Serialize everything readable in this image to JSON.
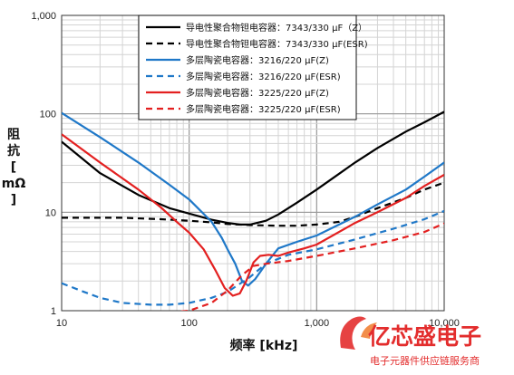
{
  "chart_data": {
    "type": "line",
    "x_scale": "log",
    "y_scale": "log",
    "xlim": [
      10,
      10000
    ],
    "ylim": [
      1,
      1000
    ],
    "grid": true,
    "legend_position": "top-right",
    "xlabel": "频率 [kHz]",
    "ylabel_chars": [
      "阻",
      "抗",
      "[",
      "mΩ",
      "]"
    ],
    "x_ticks": [
      {
        "value": 10,
        "label": "10"
      },
      {
        "value": 100,
        "label": "100"
      },
      {
        "value": 1000,
        "label": "1,000"
      },
      {
        "value": 10000,
        "label": "10,000"
      }
    ],
    "y_ticks": [
      {
        "value": 1,
        "label": "1"
      },
      {
        "value": 10,
        "label": "10"
      },
      {
        "value": 100,
        "label": "100"
      },
      {
        "value": 1000,
        "label": "1,000"
      }
    ],
    "series": [
      {
        "name": "导电性聚合物钽电容器：7343/330 µF（Z）",
        "color": "#000000",
        "dash": "solid",
        "points": [
          [
            10,
            52
          ],
          [
            20,
            25
          ],
          [
            40,
            15
          ],
          [
            70,
            11
          ],
          [
            100,
            9.7
          ],
          [
            150,
            8.4
          ],
          [
            200,
            7.8
          ],
          [
            250,
            7.5
          ],
          [
            300,
            7.5
          ],
          [
            400,
            8.2
          ],
          [
            500,
            9.5
          ],
          [
            700,
            12.5
          ],
          [
            1000,
            17
          ],
          [
            2000,
            32
          ],
          [
            3000,
            45
          ],
          [
            5000,
            66
          ],
          [
            7000,
            82
          ],
          [
            10000,
            105
          ]
        ]
      },
      {
        "name": "导电性聚合物钽电容器：7343/330 µF(ESR)",
        "color": "#000000",
        "dash": "dashed",
        "points": [
          [
            10,
            8.8
          ],
          [
            30,
            8.8
          ],
          [
            60,
            8.5
          ],
          [
            100,
            8.2
          ],
          [
            150,
            7.9
          ],
          [
            200,
            7.6
          ],
          [
            300,
            7.4
          ],
          [
            500,
            7.3
          ],
          [
            700,
            7.3
          ],
          [
            1000,
            7.5
          ],
          [
            1500,
            8
          ],
          [
            2000,
            9
          ],
          [
            3000,
            11
          ],
          [
            5000,
            14
          ],
          [
            7000,
            17
          ],
          [
            10000,
            20
          ]
        ]
      },
      {
        "name": "多层陶瓷电容器：3216/220 µF(Z)",
        "color": "#1f78c8",
        "dash": "solid",
        "points": [
          [
            10,
            102
          ],
          [
            20,
            58
          ],
          [
            40,
            32
          ],
          [
            70,
            19
          ],
          [
            100,
            13.5
          ],
          [
            150,
            8
          ],
          [
            180,
            5.5
          ],
          [
            200,
            4.2
          ],
          [
            230,
            3
          ],
          [
            260,
            2
          ],
          [
            290,
            1.8
          ],
          [
            330,
            2.1
          ],
          [
            400,
            3
          ],
          [
            500,
            4.3
          ],
          [
            700,
            5
          ],
          [
            1000,
            5.8
          ],
          [
            2000,
            9
          ],
          [
            3000,
            12
          ],
          [
            5000,
            17
          ],
          [
            7000,
            23
          ],
          [
            10000,
            32
          ]
        ]
      },
      {
        "name": "多层陶瓷电容器：3216/220 µF(ESR)",
        "color": "#1f78c8",
        "dash": "dashed",
        "points": [
          [
            10,
            1.9
          ],
          [
            15,
            1.55
          ],
          [
            20,
            1.35
          ],
          [
            30,
            1.2
          ],
          [
            50,
            1.15
          ],
          [
            70,
            1.15
          ],
          [
            100,
            1.2
          ],
          [
            150,
            1.35
          ],
          [
            200,
            1.55
          ],
          [
            300,
            2.2
          ],
          [
            400,
            3
          ],
          [
            600,
            3.7
          ],
          [
            1000,
            4.2
          ],
          [
            2000,
            5.3
          ],
          [
            4000,
            6.8
          ],
          [
            7000,
            8.5
          ],
          [
            10000,
            10.3
          ]
        ]
      },
      {
        "name": "多层陶瓷电容器：3225/220 µF(Z)",
        "color": "#e32020",
        "dash": "solid",
        "points": [
          [
            10,
            62
          ],
          [
            20,
            32
          ],
          [
            40,
            17
          ],
          [
            60,
            11.2
          ],
          [
            80,
            8
          ],
          [
            100,
            6.2
          ],
          [
            130,
            4.2
          ],
          [
            160,
            2.6
          ],
          [
            190,
            1.7
          ],
          [
            220,
            1.42
          ],
          [
            250,
            1.5
          ],
          [
            280,
            2
          ],
          [
            320,
            3.1
          ],
          [
            360,
            3.6
          ],
          [
            420,
            3.7
          ],
          [
            500,
            3.6
          ],
          [
            600,
            3.9
          ],
          [
            800,
            4.3
          ],
          [
            1000,
            4.7
          ],
          [
            2000,
            7.8
          ],
          [
            3000,
            10
          ],
          [
            5000,
            14
          ],
          [
            7000,
            18.5
          ],
          [
            10000,
            24
          ]
        ]
      },
      {
        "name": "多层陶瓷电容器：3225/220 µF(ESR)",
        "color": "#e32020",
        "dash": "dashed",
        "points": [
          [
            10,
            0.95
          ],
          [
            30,
            0.95
          ],
          [
            60,
            0.95
          ],
          [
            100,
            1.0
          ],
          [
            150,
            1.2
          ],
          [
            200,
            1.6
          ],
          [
            260,
            2.3
          ],
          [
            320,
            2.85
          ],
          [
            400,
            3
          ],
          [
            600,
            3.2
          ],
          [
            1000,
            3.6
          ],
          [
            2000,
            4.3
          ],
          [
            4000,
            5.2
          ],
          [
            7000,
            6.3
          ],
          [
            10000,
            7.7
          ]
        ]
      }
    ]
  },
  "watermark": {
    "title": "亿芯盛电子",
    "subtitle": "电子元器件供应链服务商",
    "logo_color": "#e32d2d"
  }
}
